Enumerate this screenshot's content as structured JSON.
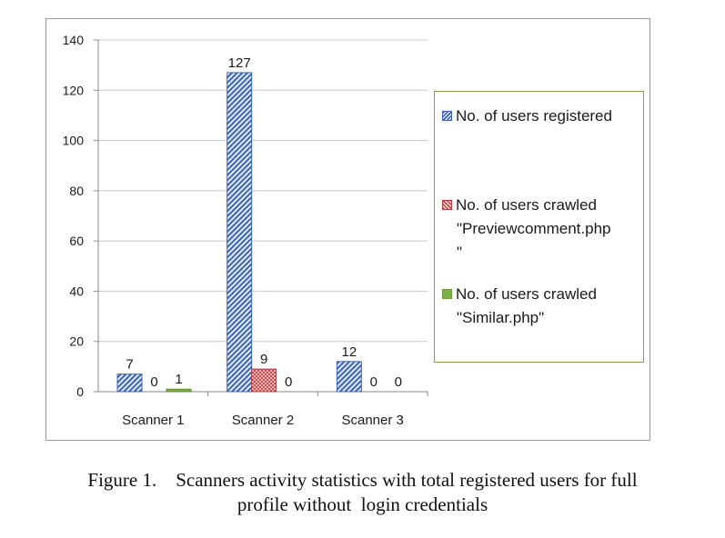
{
  "chart_data": {
    "type": "bar",
    "categories": [
      "Scanner 1",
      "Scanner 2",
      "Scanner 3"
    ],
    "series": [
      {
        "name": "No. of users registered",
        "values": [
          7,
          127,
          12
        ],
        "pattern": "diagonal-hatch",
        "color": "#3b64b8"
      },
      {
        "name": "No. of users crawled \"Previewcomment.php\"",
        "values": [
          0,
          9,
          0
        ],
        "pattern": "cross-hatch",
        "color": "#c44444"
      },
      {
        "name": "No. of users crawled \"Similar.php\"",
        "values": [
          1,
          0,
          0
        ],
        "pattern": "solid",
        "color": "#7db043"
      }
    ],
    "yticks": [
      0,
      20,
      40,
      60,
      80,
      100,
      120,
      140
    ],
    "ylim": [
      0,
      140
    ],
    "grid": true,
    "legend_position": "right"
  },
  "legend": {
    "item1": "No. of users registered",
    "item2_line1": "No. of users crawled",
    "item2_line2": "\"Previewcomment.php",
    "item2_line3": "\"",
    "item3_line1": "No. of users crawled",
    "item3_line2": "\"Similar.php\""
  },
  "caption": {
    "line1": "Figure 1.    Scanners activity statistics with total registered users for full",
    "line2": "profile without  login credentials"
  }
}
